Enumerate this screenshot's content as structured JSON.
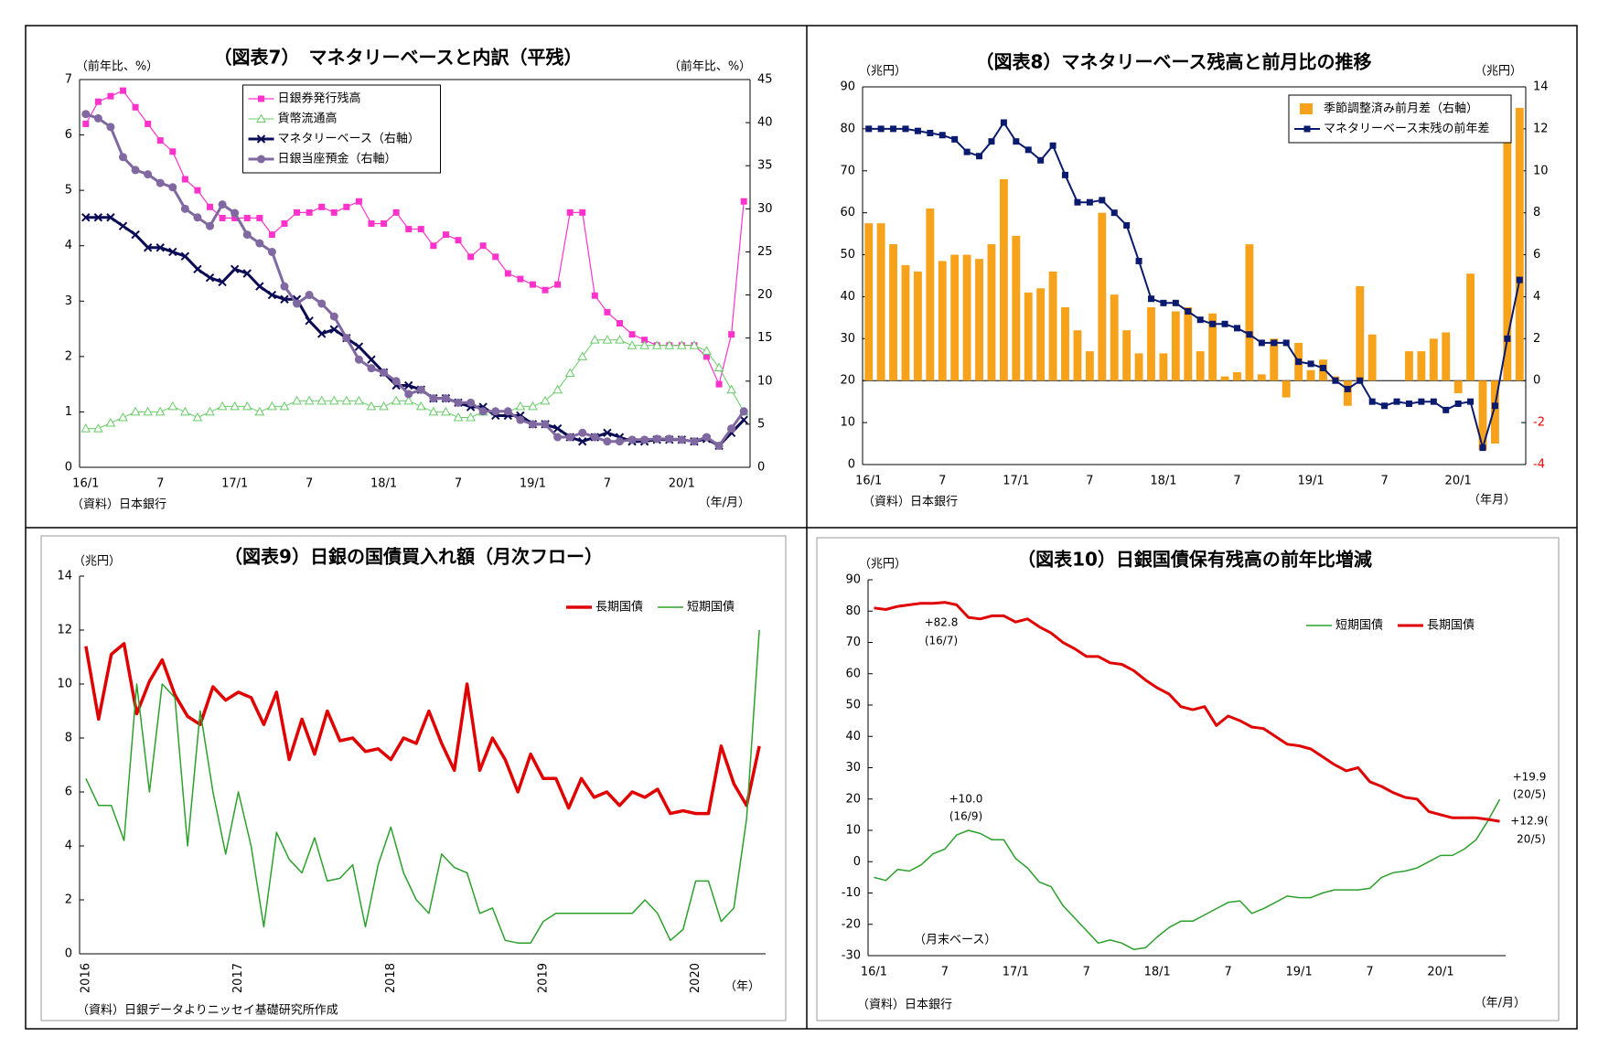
{
  "chart_data": [
    {
      "type": "line",
      "title": "（図表7）　マネタリーベースと内訳（平残）",
      "y_label": "（前年比、%）",
      "y2_label": "（前年比、%）",
      "x_label": "（年/月）",
      "source": "（資料）日本銀行",
      "categories": [
        "16/1",
        null,
        null,
        null,
        null,
        null,
        "7",
        null,
        null,
        null,
        null,
        null,
        "17/1",
        null,
        null,
        null,
        null,
        null,
        "7",
        null,
        null,
        null,
        null,
        null,
        "18/1",
        null,
        null,
        null,
        null,
        null,
        "7",
        null,
        null,
        null,
        null,
        null,
        "19/1",
        null,
        null,
        null,
        null,
        null,
        "7",
        null,
        null,
        null,
        null,
        null,
        "20/1",
        null,
        null,
        null,
        null,
        null
      ],
      "ylim": [
        0,
        7
      ],
      "yticks": [
        0,
        1,
        2,
        3,
        4,
        5,
        6,
        7
      ],
      "y2lim": [
        0,
        45
      ],
      "y2ticks": [
        0,
        5,
        10,
        15,
        20,
        25,
        30,
        35,
        40,
        45
      ],
      "legend": "upper center",
      "series": [
        {
          "name": "日銀券発行残高",
          "color": "#ff33cc",
          "marker": "square",
          "line_width": 1.2,
          "values": [
            6.2,
            6.6,
            6.7,
            6.8,
            6.5,
            6.2,
            5.9,
            5.7,
            5.2,
            5.0,
            4.7,
            4.5,
            4.5,
            4.5,
            4.5,
            4.2,
            4.4,
            4.6,
            4.6,
            4.7,
            4.6,
            4.7,
            4.8,
            4.4,
            4.4,
            4.6,
            4.3,
            4.3,
            4.0,
            4.2,
            4.1,
            3.8,
            4.0,
            3.8,
            3.5,
            3.4,
            3.3,
            3.2,
            3.3,
            4.6,
            4.6,
            3.1,
            2.8,
            2.6,
            2.4,
            2.3,
            2.2,
            2.2,
            2.2,
            2.2,
            2.0,
            1.5,
            2.4,
            4.8
          ]
        },
        {
          "name": "貨幣流通高",
          "color": "#66cc66",
          "marker": "triangle",
          "line_width": 1,
          "values": [
            0.7,
            0.7,
            0.8,
            0.9,
            1.0,
            1.0,
            1.0,
            1.1,
            1.0,
            0.9,
            1.0,
            1.1,
            1.1,
            1.1,
            1.0,
            1.1,
            1.1,
            1.2,
            1.2,
            1.2,
            1.2,
            1.2,
            1.2,
            1.1,
            1.1,
            1.2,
            1.2,
            1.1,
            1.0,
            1.0,
            0.9,
            0.9,
            1.0,
            1.0,
            1.0,
            1.1,
            1.1,
            1.2,
            1.4,
            1.7,
            2.0,
            2.3,
            2.3,
            2.3,
            2.2,
            2.2,
            2.2,
            2.2,
            2.2,
            2.2,
            2.1,
            1.8,
            1.4,
            1.0
          ]
        },
        {
          "name": "マネタリーベース（右軸）",
          "color": "#0a0a55",
          "marker": "x",
          "axis": "y2",
          "line_width": 3,
          "values": [
            29,
            29,
            29,
            28,
            27,
            25.5,
            25.5,
            25,
            24.5,
            23,
            22,
            21.5,
            23,
            22.5,
            21,
            20,
            19.5,
            19.5,
            17,
            15.5,
            16,
            15,
            14,
            12.5,
            11,
            9.5,
            9.5,
            9,
            8,
            8,
            7.5,
            7,
            7,
            6,
            6,
            6,
            5,
            5,
            4.5,
            3.5,
            3,
            3.5,
            4,
            3.5,
            3,
            3,
            3.2,
            3.2,
            3.2,
            3,
            3.3,
            2.5,
            4,
            5.5
          ]
        },
        {
          "name": "日銀当座預金（右軸）",
          "color": "#8068a0",
          "marker": "circle",
          "axis": "y2",
          "line_width": 3,
          "values": [
            41,
            40.5,
            39.5,
            36,
            34.5,
            34,
            33,
            32.5,
            30,
            29,
            28,
            30.5,
            29.5,
            27,
            26,
            25,
            21,
            19,
            20,
            19,
            17.5,
            15,
            12.5,
            11.5,
            11,
            10,
            8.5,
            9,
            8,
            8,
            7.5,
            7.5,
            6.5,
            6.5,
            6.5,
            5.5,
            5,
            5,
            3.5,
            3.5,
            4,
            3.5,
            3,
            3,
            3.2,
            3.2,
            3.3,
            3.3,
            3.2,
            3,
            3.5,
            2.5,
            4.5,
            6.5
          ]
        }
      ]
    },
    {
      "type": "bar",
      "title": "（図表8）マネタリーベース残高と前月比の推移",
      "y_label": "（兆円）",
      "y2_label": "（兆円）",
      "x_label": "（年月）",
      "source": "（資料）日本銀行",
      "categories": [
        "16/1",
        null,
        null,
        null,
        null,
        null,
        "7",
        null,
        null,
        null,
        null,
        null,
        "17/1",
        null,
        null,
        null,
        null,
        null,
        "7",
        null,
        null,
        null,
        null,
        null,
        "18/1",
        null,
        null,
        null,
        null,
        null,
        "7",
        null,
        null,
        null,
        null,
        null,
        "19/1",
        null,
        null,
        null,
        null,
        null,
        "7",
        null,
        null,
        null,
        null,
        null,
        "20/1",
        null,
        null,
        null,
        null,
        null
      ],
      "ylim": [
        0,
        90
      ],
      "yticks": [
        0,
        10,
        20,
        30,
        40,
        50,
        60,
        70,
        80,
        90
      ],
      "y2lim": [
        -4,
        14
      ],
      "y2ticks": [
        -4,
        -2,
        0,
        2,
        4,
        6,
        8,
        10,
        12,
        14
      ],
      "y2_negative_color": "#ff0000",
      "legend": "upper right",
      "series": [
        {
          "name": "季節調整済み前月差（右軸）",
          "color": "#f7a21b",
          "type": "bar",
          "axis": "y2",
          "values": [
            7.5,
            7.5,
            6.5,
            5.5,
            5.2,
            8.2,
            5.7,
            6,
            6,
            5.8,
            6.5,
            9.6,
            6.9,
            4.2,
            4.4,
            5.2,
            3.5,
            2.4,
            1.4,
            8,
            4.1,
            2.4,
            1.3,
            3.5,
            1.3,
            3.3,
            3.5,
            1.4,
            3.2,
            0.2,
            0.4,
            6.5,
            0.3,
            2,
            -0.8,
            1.8,
            0.5,
            1,
            0.2,
            -1.2,
            4.5,
            2.2,
            0,
            0,
            1.4,
            1.4,
            2,
            2.3,
            -0.6,
            5.1,
            -3.3,
            -3,
            12.1,
            13
          ]
        },
        {
          "name": "マネタリーベース末残の前年差",
          "color": "#0a1a6e",
          "type": "line",
          "marker": "square",
          "line_width": 2,
          "values": [
            80,
            80,
            80,
            80,
            79.5,
            79,
            78.5,
            77.5,
            74.5,
            73.5,
            77,
            81.5,
            77,
            75,
            72.5,
            76,
            69,
            62.5,
            62.5,
            63,
            60,
            57,
            48.5,
            39.5,
            38.5,
            38.5,
            36.5,
            34.5,
            33.5,
            33.5,
            32.5,
            31,
            29,
            29,
            29,
            24.5,
            24,
            23,
            20,
            18,
            20,
            15,
            14,
            15,
            14.5,
            15,
            15,
            13,
            14.5,
            15,
            4,
            14,
            30,
            44
          ]
        }
      ]
    },
    {
      "type": "line",
      "title": "（図表9）日銀の国債買入れ額（月次フロー）",
      "y_label": "（兆円）",
      "x_label": "（年）",
      "source": "（資料）日銀データよりニッセイ基礎研究所作成",
      "categories": [
        "2016",
        null,
        null,
        null,
        null,
        null,
        null,
        null,
        null,
        null,
        null,
        null,
        "2017",
        null,
        null,
        null,
        null,
        null,
        null,
        null,
        null,
        null,
        null,
        null,
        "2018",
        null,
        null,
        null,
        null,
        null,
        null,
        null,
        null,
        null,
        null,
        null,
        "2019",
        null,
        null,
        null,
        null,
        null,
        null,
        null,
        null,
        null,
        null,
        null,
        "2020",
        null,
        null,
        null,
        null,
        null
      ],
      "ylim": [
        0,
        14
      ],
      "yticks": [
        0,
        2,
        4,
        6,
        8,
        10,
        12,
        14
      ],
      "legend": "upper right",
      "series": [
        {
          "name": "長期国債",
          "color": "#e00000",
          "line_width": 3.5,
          "values": [
            11.4,
            8.7,
            11.1,
            11.5,
            8.9,
            10.1,
            10.9,
            9.6,
            8.8,
            8.5,
            9.9,
            9.4,
            9.7,
            9.5,
            8.5,
            9.7,
            7.2,
            8.7,
            7.4,
            9.0,
            7.9,
            8.0,
            7.5,
            7.6,
            7.2,
            8.0,
            7.8,
            9.0,
            7.8,
            6.8,
            10.0,
            6.8,
            8.0,
            7.2,
            6.0,
            7.4,
            6.5,
            6.5,
            5.4,
            6.5,
            5.8,
            6.0,
            5.5,
            6.0,
            5.8,
            6.1,
            5.2,
            5.3,
            5.2,
            5.2,
            7.7,
            6.3,
            5.5,
            7.7
          ]
        },
        {
          "name": "短期国債",
          "color": "#2ca02c",
          "line_width": 1.5,
          "values": [
            6.5,
            5.5,
            5.5,
            4.2,
            10,
            6,
            10,
            9.5,
            4,
            9,
            6,
            3.7,
            6,
            4,
            1,
            4.5,
            3.5,
            3,
            4.3,
            2.7,
            2.8,
            3.3,
            1,
            3.3,
            4.7,
            3,
            2,
            1.5,
            3.7,
            3.2,
            3,
            1.5,
            1.7,
            0.5,
            0.4,
            0.4,
            1.2,
            1.5,
            1.5,
            1.5,
            1.5,
            1.5,
            1.5,
            1.5,
            2,
            1.5,
            0.5,
            0.9,
            2.7,
            2.7,
            1.2,
            1.7,
            5,
            12
          ]
        }
      ]
    },
    {
      "type": "line",
      "title": "（図表10）日銀国債保有残高の前年比増減",
      "y_label": "（兆円）",
      "note": "（月末ベース）",
      "x_label": "（年/月）",
      "source": "（資料）日本銀行",
      "categories": [
        "16/1",
        null,
        null,
        null,
        null,
        null,
        "7",
        null,
        null,
        null,
        null,
        null,
        "17/1",
        null,
        null,
        null,
        null,
        null,
        "7",
        null,
        null,
        null,
        null,
        null,
        "18/1",
        null,
        null,
        null,
        null,
        null,
        "7",
        null,
        null,
        null,
        null,
        null,
        "19/1",
        null,
        null,
        null,
        null,
        null,
        "7",
        null,
        null,
        null,
        null,
        null,
        "20/1",
        null,
        null,
        null,
        null,
        null
      ],
      "ylim": [
        -30,
        90
      ],
      "yticks": [
        -30,
        -20,
        -10,
        0,
        10,
        20,
        30,
        40,
        50,
        60,
        70,
        80,
        90
      ],
      "legend": "upper right",
      "annotations": [
        "+82.8",
        "(16/7)",
        "+10.0",
        "(16/9)",
        "+19.9",
        "(20/5)",
        "+12.9(",
        "20/5)"
      ],
      "series": [
        {
          "name": "短期国債",
          "color": "#2ca02c",
          "line_width": 1.5,
          "values": [
            -5,
            -6,
            -2.5,
            -3,
            -1,
            2.5,
            4,
            8.5,
            10,
            9,
            7,
            7,
            1,
            -2,
            -6.5,
            -8,
            -14,
            -18,
            -22,
            -26,
            -25,
            -26,
            -28,
            -27.5,
            -24,
            -21,
            -19,
            -19,
            -17,
            -15,
            -13,
            -12.5,
            -16.5,
            -15,
            -13,
            -11,
            -11.5,
            -11.5,
            -10,
            -9,
            -9,
            -9,
            -8.5,
            -5,
            -3.5,
            -3,
            -2,
            0,
            2,
            2,
            4,
            7,
            13,
            19.9
          ]
        },
        {
          "name": "長期国債",
          "color": "#e00000",
          "line_width": 3,
          "values": [
            81,
            80.5,
            81.5,
            82,
            82.5,
            82.5,
            82.8,
            82,
            78,
            77.5,
            78.5,
            78.5,
            76.5,
            77.5,
            75,
            73,
            70,
            68,
            65.5,
            65.5,
            63.5,
            63,
            61,
            58,
            55.5,
            53.5,
            49.5,
            48.5,
            49.5,
            43.5,
            46.5,
            45,
            43,
            42.5,
            40,
            37.5,
            37,
            36,
            33.5,
            31,
            29,
            30,
            25.5,
            24,
            22,
            20.5,
            20,
            16,
            15,
            14,
            14,
            14,
            13.5,
            12.9
          ]
        }
      ]
    }
  ]
}
